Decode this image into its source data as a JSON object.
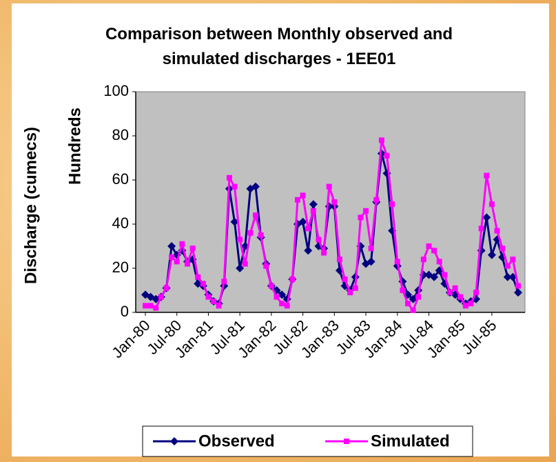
{
  "chart_data": {
    "type": "line",
    "title": "Comparison between Monthly observed and simulated discharges - 1EE01",
    "y_label": "Discharge (cumecs)",
    "y_unit_label": "Hundreds",
    "categories": [
      "Jan-80",
      null,
      null,
      null,
      null,
      null,
      "Jul-80",
      null,
      null,
      null,
      null,
      null,
      "Jan-81",
      null,
      null,
      null,
      null,
      null,
      "Jul-81",
      null,
      null,
      null,
      null,
      null,
      "Jan-82",
      null,
      null,
      null,
      null,
      null,
      "Jul-82",
      null,
      null,
      null,
      null,
      null,
      "Jan-83",
      null,
      null,
      null,
      null,
      null,
      "Jul-83",
      null,
      null,
      null,
      null,
      null,
      "Jan-84",
      null,
      null,
      null,
      null,
      null,
      "Jul-84",
      null,
      null,
      null,
      null,
      null,
      "Jan-85",
      null,
      null,
      null,
      null,
      null,
      "Jul-85",
      null,
      null,
      null,
      null,
      null
    ],
    "series": [
      {
        "name": "Observed",
        "color": "#000080",
        "marker": "diamond",
        "values": [
          8,
          7,
          6,
          7,
          11,
          30,
          26,
          28,
          23,
          24,
          13,
          12,
          8,
          5,
          4,
          12,
          56,
          41,
          20,
          30,
          56,
          57,
          34,
          22,
          12,
          10,
          8,
          6,
          15,
          40,
          41,
          28,
          49,
          30,
          29,
          48,
          48,
          19,
          12,
          10,
          16,
          30,
          22,
          23,
          50,
          72,
          63,
          37,
          21,
          14,
          8,
          6,
          10,
          17,
          17,
          16,
          19,
          13,
          9,
          8,
          6,
          4,
          5,
          6,
          28,
          43,
          26,
          33,
          25,
          16,
          16,
          9
        ]
      },
      {
        "name": "Simulated",
        "color": "#ff00ff",
        "marker": "square",
        "values": [
          3,
          3,
          2,
          7,
          11,
          25,
          23,
          31,
          22,
          29,
          16,
          13,
          7,
          5,
          3,
          14,
          61,
          57,
          33,
          22,
          36,
          44,
          35,
          21,
          12,
          7,
          4,
          3,
          15,
          51,
          53,
          38,
          46,
          33,
          27,
          57,
          50,
          24,
          15,
          9,
          11,
          43,
          46,
          29,
          51,
          78,
          71,
          49,
          23,
          10,
          4,
          1,
          7,
          24,
          30,
          28,
          23,
          17,
          9,
          11,
          7,
          3,
          4,
          9,
          38,
          62,
          49,
          37,
          29,
          21,
          24,
          12
        ]
      }
    ],
    "ylim": [
      0,
      100
    ],
    "yticks": [
      0,
      20,
      40,
      60,
      80,
      100
    ],
    "grid": false,
    "legend": "bottom"
  }
}
